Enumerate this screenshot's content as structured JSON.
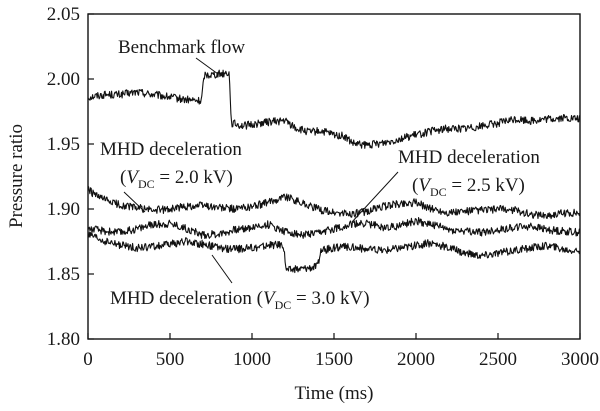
{
  "chart_data": {
    "type": "line",
    "title": "",
    "xlabel": "Time (ms)",
    "ylabel": "Pressure ratio",
    "xlim": [
      0,
      3000
    ],
    "ylim": [
      1.8,
      2.05
    ],
    "xticks": [
      "0",
      "500",
      "1000",
      "1500",
      "2000",
      "2500",
      "3000"
    ],
    "yticks": [
      "1.80",
      "1.85",
      "1.90",
      "1.95",
      "2.00",
      "2.05"
    ],
    "grid": false,
    "legend": "none",
    "series": [
      {
        "name": "Benchmark flow",
        "color": "#111111",
        "points": [
          [
            0,
            1.986
          ],
          [
            100,
            1.988
          ],
          [
            200,
            1.988
          ],
          [
            300,
            1.99
          ],
          [
            400,
            1.988
          ],
          [
            500,
            1.986
          ],
          [
            600,
            1.984
          ],
          [
            690,
            1.983
          ],
          [
            710,
            2.003
          ],
          [
            800,
            2.004
          ],
          [
            860,
            2.005
          ],
          [
            875,
            1.966
          ],
          [
            950,
            1.964
          ],
          [
            1050,
            1.966
          ],
          [
            1100,
            1.967
          ],
          [
            1200,
            1.968
          ],
          [
            1270,
            1.962
          ],
          [
            1350,
            1.959
          ],
          [
            1420,
            1.96
          ],
          [
            1500,
            1.957
          ],
          [
            1560,
            1.956
          ],
          [
            1620,
            1.95
          ],
          [
            1700,
            1.949
          ],
          [
            1800,
            1.951
          ],
          [
            1900,
            1.954
          ],
          [
            2000,
            1.957
          ],
          [
            2100,
            1.96
          ],
          [
            2200,
            1.962
          ],
          [
            2300,
            1.962
          ],
          [
            2400,
            1.964
          ],
          [
            2500,
            1.966
          ],
          [
            2600,
            1.969
          ],
          [
            2700,
            1.968
          ],
          [
            2800,
            1.969
          ],
          [
            2900,
            1.97
          ],
          [
            3000,
            1.969
          ]
        ]
      },
      {
        "name": "MHD deceleration (VDC = 2.0 kV)",
        "color": "#111111",
        "points": [
          [
            0,
            1.915
          ],
          [
            50,
            1.91
          ],
          [
            100,
            1.907
          ],
          [
            200,
            1.903
          ],
          [
            300,
            1.901
          ],
          [
            400,
            1.899
          ],
          [
            500,
            1.9
          ],
          [
            600,
            1.902
          ],
          [
            700,
            1.903
          ],
          [
            800,
            1.901
          ],
          [
            900,
            1.9
          ],
          [
            1000,
            1.902
          ],
          [
            1100,
            1.905
          ],
          [
            1200,
            1.91
          ],
          [
            1300,
            1.905
          ],
          [
            1400,
            1.9
          ],
          [
            1500,
            1.897
          ],
          [
            1600,
            1.896
          ],
          [
            1700,
            1.898
          ],
          [
            1800,
            1.902
          ],
          [
            1900,
            1.904
          ],
          [
            2000,
            1.905
          ],
          [
            2100,
            1.9
          ],
          [
            2200,
            1.897
          ],
          [
            2300,
            1.898
          ],
          [
            2400,
            1.899
          ],
          [
            2500,
            1.9
          ],
          [
            2600,
            1.899
          ],
          [
            2700,
            1.896
          ],
          [
            2800,
            1.895
          ],
          [
            2900,
            1.897
          ],
          [
            3000,
            1.897
          ]
        ]
      },
      {
        "name": "MHD deceleration (VDC = 2.5 kV)",
        "color": "#111111",
        "points": [
          [
            0,
            1.885
          ],
          [
            100,
            1.883
          ],
          [
            200,
            1.882
          ],
          [
            300,
            1.885
          ],
          [
            400,
            1.888
          ],
          [
            500,
            1.889
          ],
          [
            600,
            1.885
          ],
          [
            700,
            1.88
          ],
          [
            800,
            1.881
          ],
          [
            900,
            1.884
          ],
          [
            1000,
            1.886
          ],
          [
            1100,
            1.888
          ],
          [
            1200,
            1.883
          ],
          [
            1300,
            1.88
          ],
          [
            1400,
            1.881
          ],
          [
            1500,
            1.885
          ],
          [
            1600,
            1.888
          ],
          [
            1700,
            1.889
          ],
          [
            1800,
            1.886
          ],
          [
            1900,
            1.887
          ],
          [
            2000,
            1.891
          ],
          [
            2100,
            1.888
          ],
          [
            2200,
            1.884
          ],
          [
            2300,
            1.883
          ],
          [
            2400,
            1.882
          ],
          [
            2500,
            1.884
          ],
          [
            2600,
            1.886
          ],
          [
            2700,
            1.887
          ],
          [
            2800,
            1.884
          ],
          [
            2900,
            1.883
          ],
          [
            3000,
            1.882
          ]
        ]
      },
      {
        "name": "MHD deceleration (VDC = 3.0 kV)",
        "color": "#111111",
        "points": [
          [
            0,
            1.88
          ],
          [
            100,
            1.875
          ],
          [
            200,
            1.872
          ],
          [
            300,
            1.87
          ],
          [
            400,
            1.871
          ],
          [
            500,
            1.873
          ],
          [
            600,
            1.875
          ],
          [
            700,
            1.873
          ],
          [
            800,
            1.87
          ],
          [
            900,
            1.869
          ],
          [
            1000,
            1.87
          ],
          [
            1100,
            1.872
          ],
          [
            1190,
            1.873
          ],
          [
            1210,
            1.853
          ],
          [
            1300,
            1.854
          ],
          [
            1400,
            1.856
          ],
          [
            1420,
            1.868
          ],
          [
            1500,
            1.87
          ],
          [
            1600,
            1.871
          ],
          [
            1700,
            1.869
          ],
          [
            1800,
            1.868
          ],
          [
            1900,
            1.87
          ],
          [
            2000,
            1.872
          ],
          [
            2100,
            1.874
          ],
          [
            2200,
            1.87
          ],
          [
            2300,
            1.866
          ],
          [
            2400,
            1.864
          ],
          [
            2500,
            1.866
          ],
          [
            2600,
            1.868
          ],
          [
            2700,
            1.87
          ],
          [
            2800,
            1.872
          ],
          [
            2900,
            1.869
          ],
          [
            3000,
            1.868
          ]
        ]
      }
    ],
    "annotations": {
      "benchmark": "Benchmark flow",
      "mhd": "MHD deceleration",
      "v_symbol": "V",
      "v_sub": "DC",
      "v20_open": "(",
      "v20_rest": " = 2.0 kV)",
      "v25_open": "(",
      "v25_rest": " = 2.5 kV)",
      "v30_prefix": "MHD deceleration (",
      "v30_rest": " = 3.0 kV)"
    }
  }
}
